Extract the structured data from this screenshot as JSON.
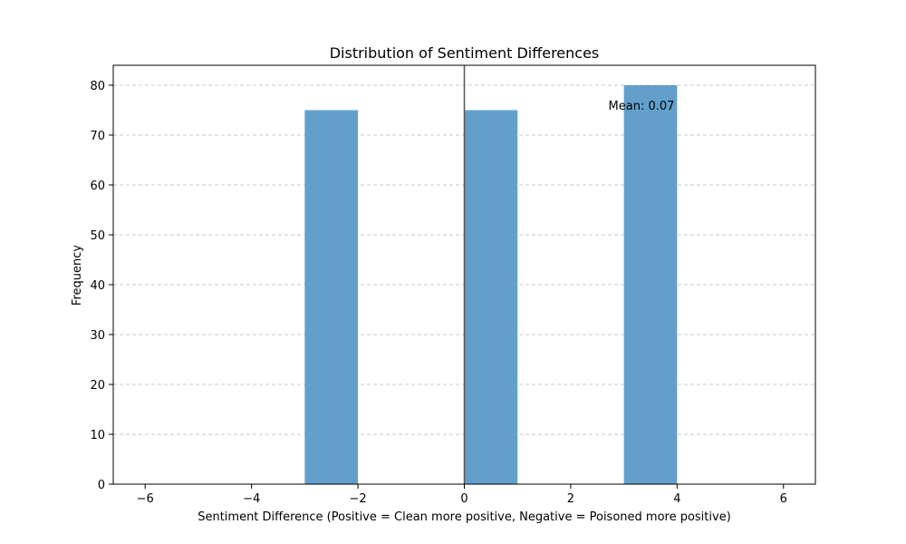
{
  "chart_data": {
    "type": "bar",
    "title": "Distribution of Sentiment Differences",
    "xlabel": "Sentiment Difference (Positive = Clean more positive, Negative = Poisoned more positive)",
    "ylabel": "Frequency",
    "xlim": [
      -6.6,
      6.6
    ],
    "ylim": [
      0,
      84
    ],
    "xticks": [
      -6,
      -4,
      -2,
      0,
      2,
      4,
      6
    ],
    "xtick_labels": [
      "−6",
      "−4",
      "−2",
      "0",
      "2",
      "4",
      "6"
    ],
    "yticks": [
      0,
      10,
      20,
      30,
      40,
      50,
      60,
      70,
      80
    ],
    "ytick_labels": [
      "0",
      "10",
      "20",
      "30",
      "40",
      "50",
      "60",
      "70",
      "80"
    ],
    "bins": [
      {
        "x0": -3,
        "x1": -2,
        "count": 75
      },
      {
        "x0": 0,
        "x1": 1,
        "count": 75
      },
      {
        "x0": 3,
        "x1": 4,
        "count": 80
      }
    ],
    "reference_line_x": 0,
    "annotation": {
      "text": "Mean: 0.07",
      "x": 3.95,
      "y": 76
    },
    "grid": {
      "y": true,
      "x": false,
      "style": "dashed"
    },
    "colors": {
      "bar": "#62a0cb",
      "grid": "#c8c8c8",
      "refline": "#555555"
    }
  }
}
